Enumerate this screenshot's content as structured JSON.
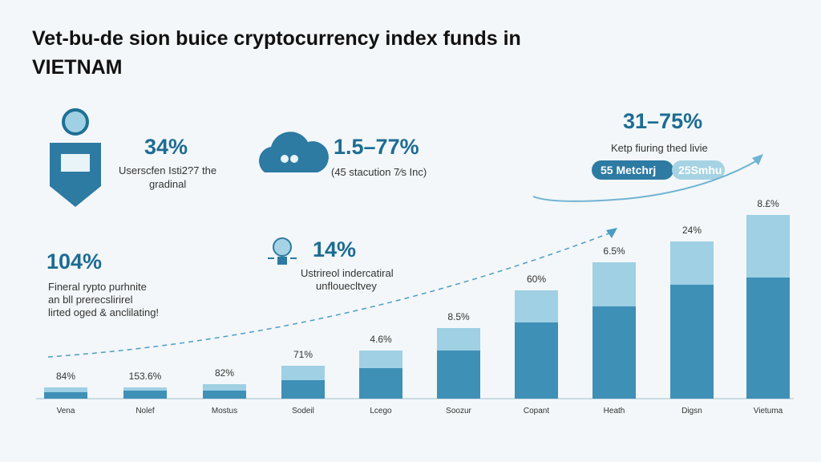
{
  "header": {
    "title_lines": [
      "Vet-bu-de sion buice cryptocurrency index funds in",
      "VIETNAM"
    ]
  },
  "stats": [
    {
      "value": "34%",
      "lines": [
        "Userscfen Isti2?7 the",
        "gradinal"
      ]
    },
    {
      "value": "1.5–77%",
      "lines": [
        "(45 stacution 7⁄s Inc)"
      ]
    },
    {
      "value": "31–75%",
      "lines": [
        "Ketp fiuring thed livie"
      ],
      "pills": [
        "55 Metchrj",
        "25Smhu"
      ]
    },
    {
      "value": "104%",
      "lines": [
        "Fineral rypto purhnite",
        "an bll prerecslirirel",
        "lirted oged & anclilating!"
      ]
    },
    {
      "value": "14%",
      "lines": [
        "Ustrireol indercatiral",
        "unflouecltvey"
      ]
    }
  ],
  "bars": [
    {
      "label": "84%",
      "category": "Vena"
    },
    {
      "label": "153.6%",
      "category": "Nolef"
    },
    {
      "label": "82%",
      "category": "Mostus"
    },
    {
      "label": "71%",
      "category": "Sodeil"
    },
    {
      "label": "4.6%",
      "category": "Lcego"
    },
    {
      "label": "8.5%",
      "category": "Soozur"
    },
    {
      "label": "60%",
      "category": "Copant"
    },
    {
      "label": "6.5%",
      "category": "Heath"
    },
    {
      "label": "24%",
      "category": "Digsn"
    },
    {
      "label": "8.£%",
      "category": "Vietuma"
    }
  ]
}
